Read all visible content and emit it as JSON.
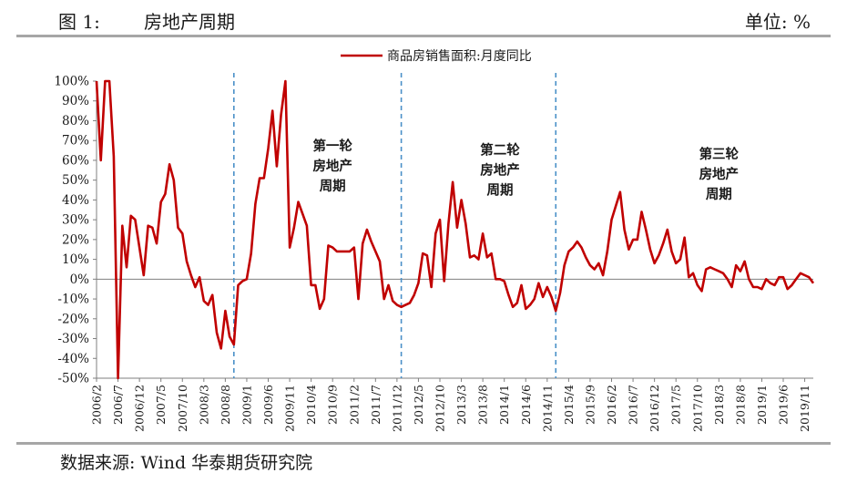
{
  "header": {
    "figure_number": "图 1:",
    "title": "房地产周期",
    "unit": "单位: %"
  },
  "footer": {
    "source": "数据来源: Wind 华泰期货研究院"
  },
  "colors": {
    "series": "#c00000",
    "divider": "#4a90c8",
    "rule": "#a6a6a6",
    "axis": "#7f7f7f",
    "annotation": "#1a1a1a"
  },
  "chart_data": {
    "type": "line",
    "title": "",
    "xlabel": "",
    "ylabel": "",
    "ylim": [
      -50,
      100
    ],
    "y_ticks": [
      100,
      90,
      80,
      70,
      60,
      50,
      40,
      30,
      20,
      10,
      0,
      -10,
      -20,
      -30,
      -40,
      -50
    ],
    "y_tick_suffix": "%",
    "x_tick_labels": [
      "2006/2",
      "2006/7",
      "2006/12",
      "2007/5",
      "2007/10",
      "2008/3",
      "2008/8",
      "2009/1",
      "2009/6",
      "2009/11",
      "2010/4",
      "2010/9",
      "2011/2",
      "2011/7",
      "2011/12",
      "2012/5",
      "2012/10",
      "2013/3",
      "2013/8",
      "2014/1",
      "2014/6",
      "2014/11",
      "2015/4",
      "2015/9",
      "2016/2",
      "2016/7",
      "2016/12",
      "2017/5",
      "2017/10",
      "2018/3",
      "2018/8",
      "2019/1",
      "2019/6",
      "2019/11"
    ],
    "x_start": "2006/2",
    "x_end": "2020/1",
    "legend": {
      "position": "top-center"
    },
    "grid": false,
    "series": [
      {
        "name": "商品房销售面积:月度同比",
        "points": [
          [
            "2006/2",
            100
          ],
          [
            "2006/3",
            60
          ],
          [
            "2006/4",
            100
          ],
          [
            "2006/5",
            100
          ],
          [
            "2006/6",
            62
          ],
          [
            "2006/7",
            -50
          ],
          [
            "2006/8",
            27
          ],
          [
            "2006/9",
            6
          ],
          [
            "2006/10",
            32
          ],
          [
            "2006/11",
            30
          ],
          [
            "2006/12",
            16
          ],
          [
            "2007/1",
            2
          ],
          [
            "2007/2",
            27
          ],
          [
            "2007/3",
            26
          ],
          [
            "2007/4",
            18
          ],
          [
            "2007/5",
            39
          ],
          [
            "2007/6",
            43
          ],
          [
            "2007/7",
            58
          ],
          [
            "2007/8",
            50
          ],
          [
            "2007/9",
            26
          ],
          [
            "2007/10",
            23
          ],
          [
            "2007/11",
            9
          ],
          [
            "2007/12",
            2
          ],
          [
            "2008/1",
            -4
          ],
          [
            "2008/2",
            1
          ],
          [
            "2008/3",
            -11
          ],
          [
            "2008/4",
            -13
          ],
          [
            "2008/5",
            -8
          ],
          [
            "2008/6",
            -27
          ],
          [
            "2008/7",
            -35
          ],
          [
            "2008/8",
            -16
          ],
          [
            "2008/9",
            -29
          ],
          [
            "2008/10",
            -33
          ],
          [
            "2008/11",
            -3
          ],
          [
            "2008/12",
            -1
          ],
          [
            "2009/1",
            0
          ],
          [
            "2009/2",
            13
          ],
          [
            "2009/3",
            38
          ],
          [
            "2009/4",
            51
          ],
          [
            "2009/5",
            51
          ],
          [
            "2009/6",
            66
          ],
          [
            "2009/7",
            85
          ],
          [
            "2009/8",
            57
          ],
          [
            "2009/9",
            83
          ],
          [
            "2009/10",
            100
          ],
          [
            "2009/11",
            16
          ],
          [
            "2009/12",
            26
          ],
          [
            "2010/1",
            39
          ],
          [
            "2010/2",
            33
          ],
          [
            "2010/3",
            27
          ],
          [
            "2010/4",
            -3
          ],
          [
            "2010/5",
            -3
          ],
          [
            "2010/6",
            -15
          ],
          [
            "2010/7",
            -10
          ],
          [
            "2010/8",
            17
          ],
          [
            "2010/9",
            16
          ],
          [
            "2010/10",
            14
          ],
          [
            "2010/11",
            14
          ],
          [
            "2010/12",
            14
          ],
          [
            "2011/1",
            14
          ],
          [
            "2011/2",
            16
          ],
          [
            "2011/3",
            -10
          ],
          [
            "2011/4",
            18
          ],
          [
            "2011/5",
            25
          ],
          [
            "2011/6",
            19
          ],
          [
            "2011/7",
            14
          ],
          [
            "2011/8",
            9
          ],
          [
            "2011/9",
            -10
          ],
          [
            "2011/10",
            -3
          ],
          [
            "2011/11",
            -11
          ],
          [
            "2011/12",
            -13
          ],
          [
            "2012/1",
            -14
          ],
          [
            "2012/2",
            -13
          ],
          [
            "2012/3",
            -12
          ],
          [
            "2012/4",
            -8
          ],
          [
            "2012/5",
            -2
          ],
          [
            "2012/6",
            13
          ],
          [
            "2012/7",
            12
          ],
          [
            "2012/8",
            -4
          ],
          [
            "2012/9",
            23
          ],
          [
            "2012/10",
            30
          ],
          [
            "2012/11",
            -1
          ],
          [
            "2012/12",
            28
          ],
          [
            "2013/1",
            49
          ],
          [
            "2013/2",
            26
          ],
          [
            "2013/3",
            40
          ],
          [
            "2013/4",
            28
          ],
          [
            "2013/5",
            11
          ],
          [
            "2013/6",
            12
          ],
          [
            "2013/7",
            10
          ],
          [
            "2013/8",
            23
          ],
          [
            "2013/9",
            11
          ],
          [
            "2013/10",
            13
          ],
          [
            "2013/11",
            0
          ],
          [
            "2013/12",
            0
          ],
          [
            "2014/1",
            -1
          ],
          [
            "2014/2",
            -8
          ],
          [
            "2014/3",
            -14
          ],
          [
            "2014/4",
            -12
          ],
          [
            "2014/5",
            -3
          ],
          [
            "2014/6",
            -15
          ],
          [
            "2014/7",
            -13
          ],
          [
            "2014/8",
            -10
          ],
          [
            "2014/9",
            -2
          ],
          [
            "2014/10",
            -9
          ],
          [
            "2014/11",
            -4
          ],
          [
            "2014/12",
            -9
          ],
          [
            "2015/1",
            -16
          ],
          [
            "2015/2",
            -7
          ],
          [
            "2015/3",
            7
          ],
          [
            "2015/4",
            14
          ],
          [
            "2015/5",
            16
          ],
          [
            "2015/6",
            19
          ],
          [
            "2015/7",
            16
          ],
          [
            "2015/8",
            11
          ],
          [
            "2015/9",
            7
          ],
          [
            "2015/10",
            5
          ],
          [
            "2015/11",
            8
          ],
          [
            "2015/12",
            2
          ],
          [
            "2016/1",
            14
          ],
          [
            "2016/2",
            30
          ],
          [
            "2016/3",
            37
          ],
          [
            "2016/4",
            44
          ],
          [
            "2016/5",
            25
          ],
          [
            "2016/6",
            15
          ],
          [
            "2016/7",
            20
          ],
          [
            "2016/8",
            20
          ],
          [
            "2016/9",
            34
          ],
          [
            "2016/10",
            25
          ],
          [
            "2016/11",
            15
          ],
          [
            "2016/12",
            8
          ],
          [
            "2017/1",
            12
          ],
          [
            "2017/2",
            18
          ],
          [
            "2017/3",
            25
          ],
          [
            "2017/4",
            14
          ],
          [
            "2017/5",
            8
          ],
          [
            "2017/6",
            10
          ],
          [
            "2017/7",
            21
          ],
          [
            "2017/8",
            1
          ],
          [
            "2017/9",
            3
          ],
          [
            "2017/10",
            -3
          ],
          [
            "2017/11",
            -6
          ],
          [
            "2017/12",
            5
          ],
          [
            "2018/1",
            6
          ],
          [
            "2018/2",
            5
          ],
          [
            "2018/3",
            4
          ],
          [
            "2018/4",
            3
          ],
          [
            "2018/5",
            0
          ],
          [
            "2018/6",
            -4
          ],
          [
            "2018/7",
            7
          ],
          [
            "2018/8",
            4
          ],
          [
            "2018/9",
            9
          ],
          [
            "2018/10",
            0
          ],
          [
            "2018/11",
            -4
          ],
          [
            "2018/12",
            -4
          ],
          [
            "2019/1",
            -5
          ],
          [
            "2019/2",
            0
          ],
          [
            "2019/3",
            -2
          ],
          [
            "2019/4",
            -3
          ],
          [
            "2019/5",
            1
          ],
          [
            "2019/6",
            1
          ],
          [
            "2019/7",
            -5
          ],
          [
            "2019/8",
            -3
          ],
          [
            "2019/9",
            0
          ],
          [
            "2019/10",
            3
          ],
          [
            "2019/11",
            2
          ],
          [
            "2019/12",
            1
          ],
          [
            "2020/1",
            -2
          ]
        ]
      }
    ],
    "cycle_dividers": [
      "2008/10",
      "2012/1",
      "2015/1"
    ],
    "annotations": [
      {
        "text": [
          "第一轮",
          "房地产",
          "周期"
        ],
        "x": "2010/9",
        "y": 65
      },
      {
        "text": [
          "第二轮",
          "房地产",
          "周期"
        ],
        "x": "2013/12",
        "y": 63
      },
      {
        "text": [
          "第三轮",
          "房地产",
          "周期"
        ],
        "x": "2018/3",
        "y": 61
      }
    ]
  }
}
